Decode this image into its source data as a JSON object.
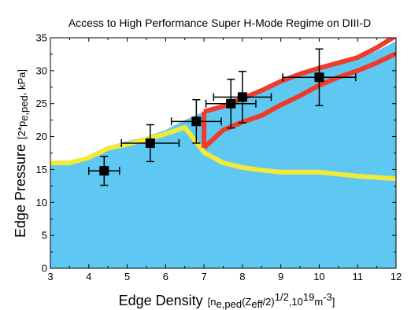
{
  "chart_data": {
    "type": "scatter",
    "title": "Access to High Performance Super H-Mode Regime on DIII-D",
    "xlabel": {
      "main": "Edge Density",
      "detail": "[n",
      "detail_sub": "e,ped",
      "detail_2": "(Z",
      "detail_sub_2": "eff",
      "detail_3": "/2)",
      "detail_sup": "1/2",
      "detail_4": ",10",
      "detail_sup_2": "19",
      "detail_5": "m",
      "detail_sup_3": "-3",
      "detail_6": "]"
    },
    "ylabel": {
      "main": "Edge Pressure",
      "detail": "[2*p",
      "detail_sub": "e,ped",
      "detail_2": ", kPa]"
    },
    "xlim": [
      3,
      12
    ],
    "ylim": [
      0,
      35
    ],
    "xticks": [
      "3",
      "4",
      "5",
      "6",
      "7",
      "8",
      "9",
      "10",
      "11",
      "12"
    ],
    "yticks": [
      "0",
      "5",
      "10",
      "15",
      "20",
      "25",
      "30",
      "35"
    ],
    "grid": false,
    "colors": {
      "region_fill": "#5ec8f2",
      "lower_boundary": "#f3e93a",
      "super_h_band": "#ef3b2c",
      "points": "#000000"
    },
    "accessible_region_boundary": {
      "x": [
        3,
        3.5,
        4,
        4.5,
        5,
        5.5,
        6,
        6.5,
        7,
        7.5,
        8,
        8.5,
        9,
        9.5,
        10,
        10.5,
        11,
        11.5,
        12
      ],
      "y": [
        16,
        16,
        16.6,
        18.5,
        19.3,
        20,
        21,
        22.5,
        23.8,
        24.8,
        25.8,
        27,
        28.4,
        29.3,
        30.3,
        31.1,
        31.8,
        33,
        34.5
      ]
    },
    "lower_boundary": {
      "x": [
        3,
        3.5,
        4,
        4.5,
        5,
        5.5,
        6,
        6.5,
        7,
        7.5,
        8,
        8.5,
        9,
        10,
        11,
        12
      ],
      "y": [
        16,
        16,
        16.8,
        18.2,
        18.8,
        19.6,
        20.4,
        21.4,
        17.6,
        16,
        15.3,
        14.9,
        14.6,
        14.6,
        14,
        13.6
      ]
    },
    "super_h_band": {
      "upper": {
        "x": [
          7,
          7.5,
          8,
          8.5,
          9,
          9.5,
          10,
          10.5,
          11,
          11.5,
          12
        ],
        "y": [
          23.8,
          24.6,
          25.8,
          27,
          28.4,
          29.5,
          30.4,
          31.2,
          32,
          33.5,
          35.3
        ]
      },
      "lower": {
        "x": [
          7,
          7.5,
          8,
          8.5,
          9,
          9.5,
          10,
          10.5,
          11,
          11.5,
          12
        ],
        "y": [
          18.3,
          21,
          22.2,
          23.2,
          24.8,
          26.2,
          27.8,
          29,
          30,
          31.2,
          32.6
        ]
      }
    },
    "points": [
      {
        "x": 4.4,
        "y": 14.8,
        "xerr": 0.4,
        "yerr": 2.2
      },
      {
        "x": 5.6,
        "y": 19.0,
        "xerr": 0.75,
        "yerr": 2.8
      },
      {
        "x": 6.8,
        "y": 22.3,
        "xerr": 0.65,
        "yerr": 3.3
      },
      {
        "x": 7.7,
        "y": 25.0,
        "xerr": 0.65,
        "yerr": 3.7
      },
      {
        "x": 8.0,
        "y": 26.0,
        "xerr": 0.75,
        "yerr": 3.9
      },
      {
        "x": 10.0,
        "y": 29.0,
        "xerr": 0.95,
        "yerr": 4.3
      }
    ]
  }
}
